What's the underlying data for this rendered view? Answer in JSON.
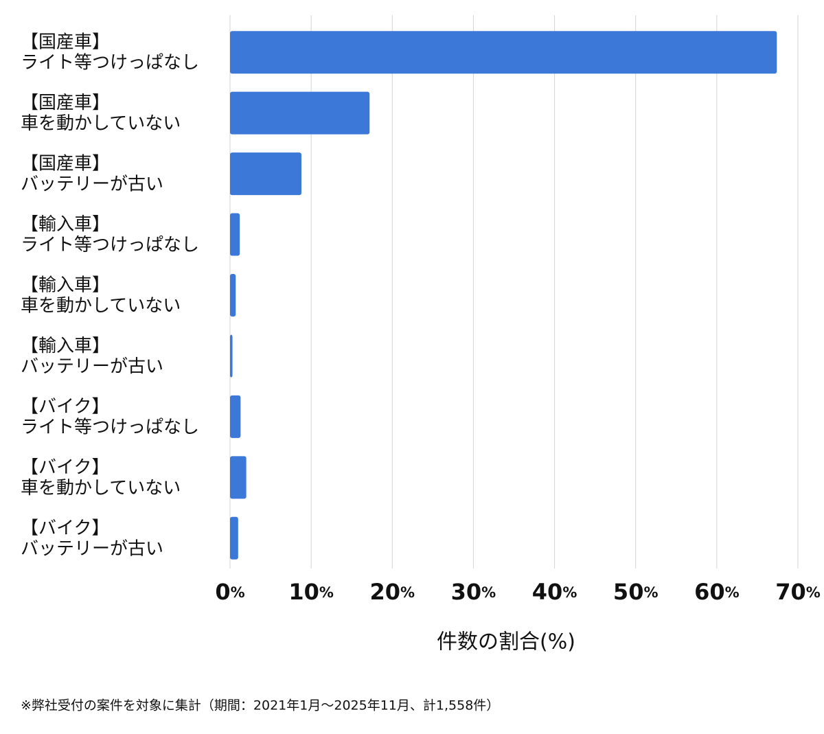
{
  "chart_data": {
    "type": "barh",
    "categories": [
      [
        "【国産車】",
        "ライト等つけっぱなし"
      ],
      [
        "【国産車】",
        "車を動かしていない"
      ],
      [
        "【国産車】",
        "バッテリーが古い"
      ],
      [
        "【輸入車】",
        "ライト等つけっぱなし"
      ],
      [
        "【輸入車】",
        "車を動かしていない"
      ],
      [
        "【輸入車】",
        "バッテリーが古い"
      ],
      [
        "【バイク】",
        "ライト等つけっぱなし"
      ],
      [
        "【バイク】",
        "車を動かしていない"
      ],
      [
        "【バイク】",
        "バッテリーが古い"
      ]
    ],
    "values": [
      67.4,
      17.2,
      8.8,
      1.2,
      0.7,
      0.3,
      1.3,
      2.0,
      1.0
    ],
    "color": "#3c78d8",
    "xlim": [
      0,
      70
    ],
    "xticks": [
      {
        "value": 0,
        "label": "0%"
      },
      {
        "value": 10,
        "label": "10%"
      },
      {
        "value": 20,
        "label": "20%"
      },
      {
        "value": 30,
        "label": "30%"
      },
      {
        "value": 40,
        "label": "40%"
      },
      {
        "value": 50,
        "label": "50%"
      },
      {
        "value": 60,
        "label": "60%"
      },
      {
        "value": 70,
        "label": "70%"
      }
    ],
    "xlabel": "件数の割合(%)",
    "grid": true,
    "footnote": "※弊社受付の案件を対象に集計（期間：2021年1月〜2025年11月、計1,558件）"
  }
}
